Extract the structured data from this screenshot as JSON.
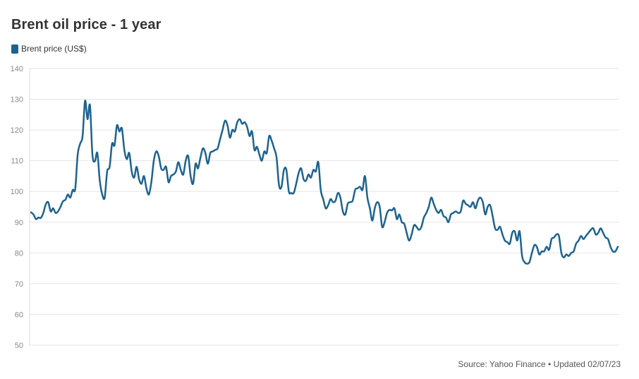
{
  "chart_data": {
    "type": "line",
    "title": "Brent oil price - 1 year",
    "ylim": [
      50,
      140
    ],
    "yticks": [
      50,
      60,
      70,
      80,
      90,
      100,
      110,
      120,
      130,
      140
    ],
    "grid": true,
    "legend_position": "top-left",
    "series": [
      {
        "name": "Brent price (US$)",
        "color": "#1d6390",
        "values": [
          93.2,
          92.5,
          91.0,
          91.5,
          91.4,
          93.0,
          95.8,
          96.5,
          93.5,
          94.5,
          93.0,
          93.5,
          95.0,
          96.8,
          97.3,
          99.0,
          98.0,
          100.5,
          100.8,
          112.0,
          115.5,
          118.0,
          129.5,
          123.5,
          128.0,
          112.0,
          109.8,
          112.5,
          103.5,
          99.0,
          98.0,
          106.5,
          108.0,
          115.5,
          115.0,
          121.5,
          119.5,
          120.5,
          113.5,
          110.5,
          112.5,
          106.5,
          104.5,
          108.0,
          104.0,
          102.5,
          105.0,
          101.0,
          99.0,
          103.0,
          110.0,
          113.0,
          111.5,
          107.5,
          107.0,
          108.0,
          103.0,
          105.0,
          105.5,
          106.5,
          109.5,
          107.0,
          105.5,
          110.0,
          111.5,
          105.0,
          102.5,
          109.0,
          107.5,
          111.0,
          114.0,
          112.5,
          109.0,
          112.5,
          113.0,
          113.5,
          114.0,
          117.0,
          120.0,
          123.0,
          121.5,
          117.5,
          120.0,
          119.5,
          122.5,
          123.5,
          122.0,
          122.5,
          121.0,
          118.0,
          119.5,
          113.5,
          114.5,
          112.0,
          110.0,
          113.0,
          112.5,
          118.0,
          116.5,
          114.0,
          111.0,
          102.0,
          101.5,
          107.0,
          107.0,
          100.0,
          99.5,
          99.5,
          102.5,
          106.0,
          107.5,
          104.0,
          103.5,
          105.5,
          104.5,
          107.0,
          106.5,
          109.5,
          100.5,
          97.5,
          94.5,
          95.5,
          97.5,
          96.5,
          97.0,
          99.5,
          98.0,
          93.5,
          92.5,
          96.0,
          96.5,
          97.0,
          100.5,
          101.0,
          101.5,
          100.5,
          105.0,
          98.0,
          94.5,
          90.5,
          94.5,
          96.5,
          95.0,
          88.5,
          90.0,
          93.0,
          94.0,
          93.8,
          94.5,
          91.0,
          92.5,
          90.0,
          89.5,
          86.5,
          84.0,
          86.0,
          89.0,
          88.5,
          87.5,
          88.5,
          91.5,
          93.0,
          95.0,
          98.0,
          96.0,
          94.0,
          93.0,
          94.0,
          92.0,
          91.5,
          90.0,
          92.5,
          93.0,
          93.5,
          93.0,
          93.5,
          97.0,
          96.0,
          95.5,
          95.0,
          96.5,
          94.5,
          97.0,
          98.0,
          96.5,
          92.5,
          95.0,
          95.5,
          92.0,
          88.0,
          87.5,
          88.5,
          86.0,
          84.0,
          83.5,
          83.0,
          86.5,
          87.0,
          84.0,
          87.0,
          79.0,
          77.0,
          76.5,
          77.0,
          80.0,
          82.5,
          82.0,
          79.5,
          80.5,
          80.5,
          82.0,
          81.0,
          84.5,
          85.0,
          86.0,
          85.5,
          80.0,
          78.5,
          79.5,
          79.0,
          80.0,
          80.5,
          83.0,
          84.0,
          85.5,
          84.5,
          85.5,
          86.5,
          87.5,
          88.0,
          86.0,
          86.5,
          88.0,
          86.5,
          85.0,
          84.5,
          82.0,
          80.5,
          80.5,
          82.0
        ]
      }
    ]
  },
  "footer": {
    "source": "Source: Yahoo Finance • Updated 02/07/23"
  }
}
